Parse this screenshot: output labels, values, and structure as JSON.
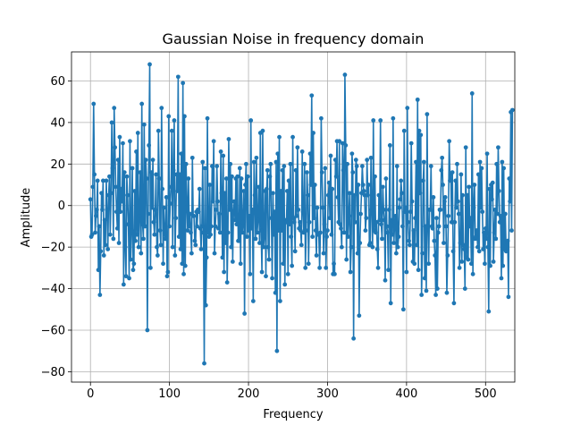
{
  "chart_data": {
    "type": "line",
    "title": "Gaussian Noise in frequency domain",
    "xlabel": "Frequency",
    "ylabel": "Amplitude",
    "xlim": [
      -24,
      537
    ],
    "ylim": [
      -85,
      74
    ],
    "xticks": [
      0,
      100,
      200,
      300,
      400,
      500
    ],
    "yticks": [
      -80,
      -60,
      -40,
      -20,
      0,
      20,
      40,
      60
    ],
    "grid": true,
    "marker": "circle",
    "series": [
      {
        "color": "#1f77b4",
        "x_start": 0,
        "x_step": 1,
        "values": [
          3,
          -15,
          -14,
          9,
          49,
          15,
          -13,
          -5,
          -2,
          12,
          -31,
          -10,
          -43,
          -22,
          6,
          -2,
          12,
          -24,
          -7,
          -19,
          12,
          -2,
          -21,
          5,
          14,
          -14,
          6,
          40,
          18,
          -16,
          47,
          28,
          9,
          -3,
          -11,
          22,
          -18,
          33,
          -3,
          8,
          2,
          30,
          -38,
          16,
          -20,
          -34,
          14,
          5,
          -9,
          -35,
          31,
          -26,
          -12,
          18,
          -31,
          -28,
          7,
          -17,
          26,
          -14,
          35,
          -20,
          -5,
          16,
          -23,
          49,
          -9,
          -16,
          39,
          -10,
          22,
          13,
          -60,
          -4,
          29,
          68,
          -30,
          16,
          -1,
          22,
          -8,
          -14,
          -2,
          15,
          -20,
          -24,
          36,
          13,
          -12,
          -19,
          47,
          8,
          -28,
          -1,
          -14,
          -16,
          4,
          -34,
          -32,
          43,
          -10,
          1,
          9,
          36,
          -20,
          17,
          41,
          -24,
          -6,
          15,
          7,
          62,
          -15,
          15,
          -21,
          25,
          -28,
          59,
          -33,
          43,
          -29,
          20,
          1,
          -12,
          13,
          -10,
          -4,
          -13,
          -23,
          23,
          -5,
          -5,
          -17,
          -19,
          -3,
          -10,
          -2,
          -3,
          8,
          -11,
          -21,
          -10,
          21,
          -13,
          -76,
          18,
          -48,
          -25,
          42,
          -13,
          -15,
          10,
          -14,
          -10,
          19,
          2,
          31,
          -23,
          -10,
          -2,
          19,
          2,
          -11,
          -4,
          -13,
          26,
          6,
          -25,
          24,
          -32,
          6,
          -18,
          13,
          -37,
          -13,
          32,
          -2,
          20,
          -20,
          14,
          -27,
          -3,
          2,
          -7,
          13,
          -9,
          14,
          -17,
          -17,
          18,
          -28,
          13,
          -13,
          -8,
          7,
          -52,
          10,
          20,
          -15,
          14,
          -12,
          -5,
          -33,
          41,
          -11,
          -2,
          -46,
          21,
          5,
          -16,
          23,
          -13,
          -7,
          9,
          -18,
          35,
          -12,
          -32,
          36,
          -20,
          -15,
          7,
          -34,
          8,
          17,
          -20,
          -26,
          14,
          20,
          -6,
          -35,
          6,
          -14,
          -3,
          -42,
          21,
          -70,
          25,
          -12,
          33,
          -46,
          7,
          -12,
          17,
          -28,
          19,
          -38,
          -7,
          -8,
          7,
          -33,
          12,
          -9,
          20,
          -15,
          -29,
          33,
          -6,
          -8,
          -22,
          17,
          -5,
          28,
          -2,
          -11,
          -8,
          -12,
          -19,
          26,
          -3,
          -13,
          20,
          -30,
          -12,
          16,
          5,
          -28,
          -8,
          25,
          10,
          53,
          -15,
          35,
          -6,
          10,
          -12,
          -24,
          -1,
          -14,
          -14,
          -30,
          -13,
          42,
          16,
          -1,
          -23,
          -9,
          18,
          -30,
          -15,
          -12,
          5,
          11,
          -6,
          24,
          -14,
          8,
          -33,
          -28,
          -33,
          22,
          14,
          31,
          4,
          -8,
          31,
          -9,
          -11,
          -20,
          30,
          17,
          -13,
          63,
          29,
          -26,
          20,
          -15,
          -5,
          6,
          -32,
          -20,
          25,
          16,
          -64,
          5,
          -8,
          22,
          19,
          -23,
          10,
          -53,
          -18,
          -4,
          6,
          19,
          10,
          7,
          5,
          -12,
          -6,
          22,
          5,
          10,
          -19,
          -18,
          23,
          -2,
          -20,
          41,
          -12,
          14,
          -13,
          -8,
          -21,
          -30,
          5,
          -7,
          41,
          -9,
          -16,
          9,
          -2,
          -7,
          -36,
          13,
          -10,
          -13,
          -31,
          -2,
          29,
          -47,
          -7,
          -14,
          42,
          -18,
          -8,
          -5,
          -23,
          19,
          -20,
          -15,
          -1,
          3,
          12,
          6,
          -10,
          -50,
          36,
          -3,
          -1,
          -32,
          47,
          -8,
          -17,
          -19,
          -3,
          30,
          2,
          -27,
          -12,
          -28,
          -6,
          21,
          -19,
          51,
          -31,
          36,
          6,
          34,
          -43,
          -23,
          12,
          21,
          -35,
          -10,
          -41,
          44,
          -10,
          -28,
          -2,
          -2,
          19,
          -10,
          -11,
          4,
          -17,
          -24,
          -43,
          -6,
          -40,
          -13,
          -10,
          -2,
          -2,
          17,
          23,
          10,
          -18,
          2,
          4,
          -10,
          -42,
          -24,
          -5,
          31,
          12,
          15,
          -8,
          16,
          -22,
          -47,
          -8,
          12,
          -1,
          20,
          2,
          -4,
          -30,
          -18,
          15,
          -27,
          5,
          -19,
          -21,
          -40,
          28,
          -25,
          5,
          -26,
          9,
          -10,
          -6,
          -28,
          54,
          -33,
          -1,
          10,
          -16,
          -15,
          -12,
          -20,
          15,
          -22,
          21,
          -1,
          18,
          -3,
          -21,
          -13,
          -28,
          -11,
          -16,
          25,
          -20,
          -51,
          8,
          -29,
          10,
          3,
          11,
          -27,
          -13,
          -2,
          -16,
          20,
          -4,
          28,
          7,
          -8,
          -5,
          -35,
          21,
          -29,
          18,
          -21,
          -4,
          -22,
          -19,
          -17,
          -44,
          13,
          2,
          45,
          -12,
          46
        ]
      }
    ]
  }
}
